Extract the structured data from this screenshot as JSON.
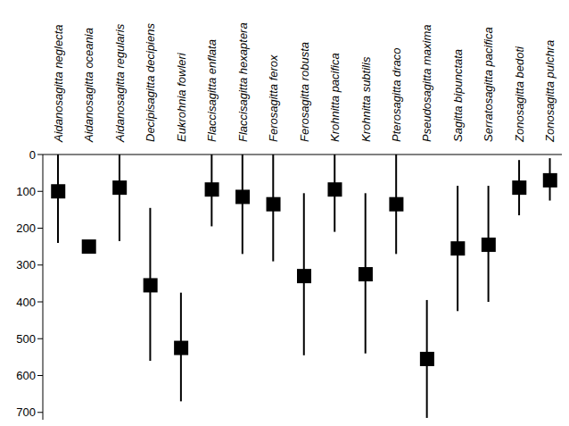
{
  "chart_data": {
    "type": "scatter",
    "categories": [
      "Aidanosagitta neglecta",
      "Aidanosagitta oceania",
      "Aidanosagitta regularis",
      "Decipisagitta decipiens",
      "Eukrohnia fowleri",
      "Flaccisagitta enflata",
      "Flaccisagitta hexaptera",
      "Ferosagitta ferox",
      "Ferosagitta robusta",
      "Krohnitta pacifica",
      "Krohnitta subtilis",
      "Pterosagitta draco",
      "Pseudosagitta maxima",
      "Sagitta bipunctata",
      "Serratosagitta pacifica",
      "Zonosagitta bedoti",
      "Zonosagitta pulchra"
    ],
    "values": [
      100,
      250,
      90,
      355,
      525,
      95,
      115,
      135,
      330,
      95,
      325,
      135,
      555,
      255,
      245,
      90,
      70
    ],
    "error_low": [
      0,
      null,
      0,
      145,
      375,
      0,
      0,
      0,
      105,
      0,
      105,
      0,
      395,
      85,
      85,
      15,
      10
    ],
    "error_high": [
      240,
      null,
      235,
      560,
      670,
      195,
      270,
      290,
      545,
      210,
      540,
      270,
      715,
      425,
      400,
      165,
      125
    ],
    "ylim": [
      0,
      720
    ],
    "yticks": [
      0,
      100,
      200,
      300,
      400,
      500,
      600,
      700
    ],
    "color": "#000000",
    "marker": "square"
  }
}
